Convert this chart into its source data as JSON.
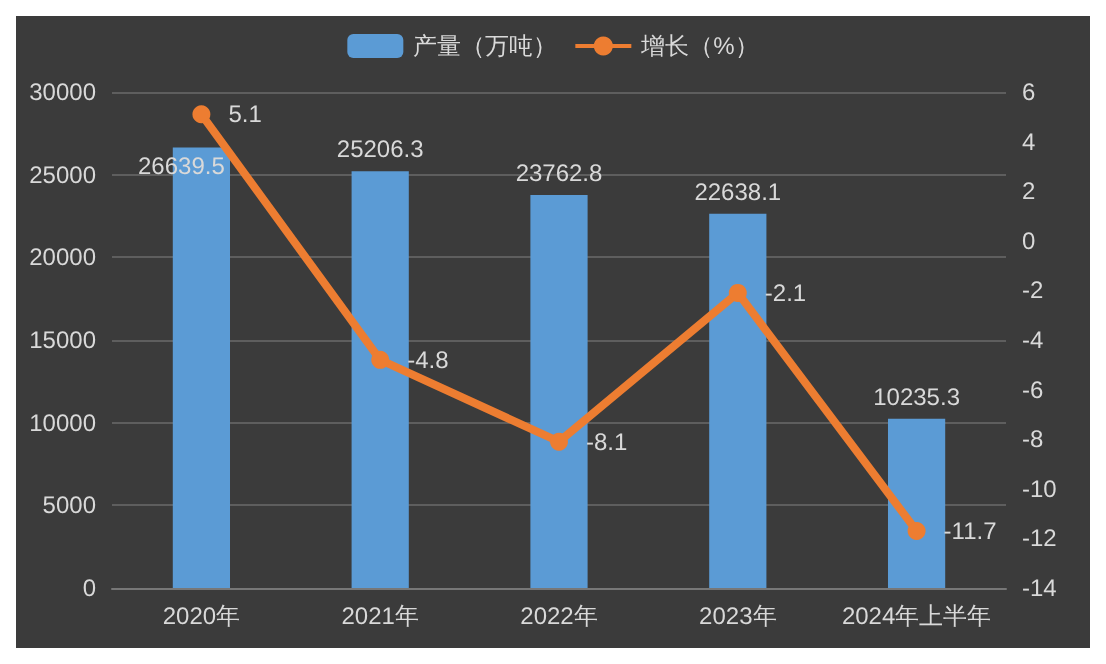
{
  "chart_data": {
    "type": "bar",
    "categories": [
      "2020年",
      "2021年",
      "2022年",
      "2023年",
      "2024年上半年"
    ],
    "series": [
      {
        "name": "产量（万吨）",
        "color": "#5b9bd5",
        "values": [
          26639.5,
          25206.3,
          23762.8,
          22638.1,
          10235.3
        ]
      },
      {
        "name": "增长（%）",
        "type": "line",
        "axis": "y2",
        "color": "#ed7d31",
        "values": [
          5.1,
          -4.8,
          -8.1,
          -2.1,
          -11.7
        ]
      }
    ],
    "ylim": [
      0,
      30000
    ],
    "yticks": [
      0,
      {
        "value": 5000,
        "label": "5000"
      },
      {
        "value": 10000,
        "label": "10000"
      },
      {
        "value": 15000,
        "label": "15000"
      },
      {
        "value": 20000,
        "label": "20000"
      },
      {
        "value": 25000,
        "label": "25000"
      },
      {
        "value": 30000,
        "label": "30000"
      }
    ],
    "y2lim": [
      -14,
      6
    ],
    "y2ticks": [
      -14,
      -12,
      -10,
      -8,
      -6,
      -4,
      -2,
      0,
      2,
      4,
      6
    ],
    "data_labels": true,
    "grid": "y",
    "legend": "top",
    "marker": "circle",
    "line_style": "solid"
  }
}
